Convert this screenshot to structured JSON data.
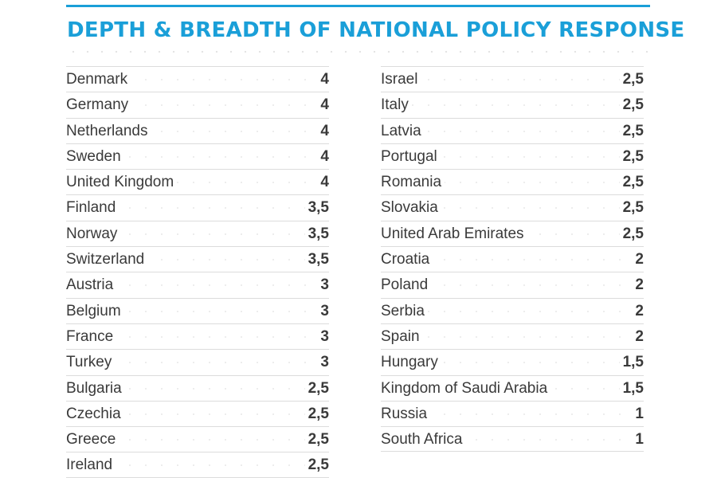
{
  "chart_data": {
    "type": "table",
    "title": "DEPTH & BREADTH OF NATIONAL POLICY RESPONSE",
    "columns": [
      [
        {
          "country": "Denmark",
          "score": "4"
        },
        {
          "country": "Germany",
          "score": "4"
        },
        {
          "country": "Netherlands",
          "score": "4"
        },
        {
          "country": "Sweden",
          "score": "4"
        },
        {
          "country": "United Kingdom",
          "score": "4"
        },
        {
          "country": "Finland",
          "score": "3,5"
        },
        {
          "country": "Norway",
          "score": "3,5"
        },
        {
          "country": "Switzerland",
          "score": "3,5"
        },
        {
          "country": "Austria",
          "score": "3"
        },
        {
          "country": "Belgium",
          "score": "3"
        },
        {
          "country": "France",
          "score": "3"
        },
        {
          "country": "Turkey",
          "score": "3"
        },
        {
          "country": "Bulgaria",
          "score": "2,5"
        },
        {
          "country": "Czechia",
          "score": "2,5"
        },
        {
          "country": "Greece",
          "score": "2,5"
        },
        {
          "country": "Ireland",
          "score": "2,5"
        }
      ],
      [
        {
          "country": "Israel",
          "score": "2,5"
        },
        {
          "country": "Italy",
          "score": "2,5"
        },
        {
          "country": "Latvia",
          "score": "2,5"
        },
        {
          "country": "Portugal",
          "score": "2,5"
        },
        {
          "country": "Romania",
          "score": "2,5"
        },
        {
          "country": "Slovakia",
          "score": "2,5"
        },
        {
          "country": "United Arab Emirates",
          "score": "2,5"
        },
        {
          "country": "Croatia",
          "score": "2"
        },
        {
          "country": "Poland",
          "score": "2"
        },
        {
          "country": "Serbia",
          "score": "2"
        },
        {
          "country": "Spain",
          "score": "2"
        },
        {
          "country": "Hungary",
          "score": "1,5"
        },
        {
          "country": "Kingdom of Saudi Arabia",
          "score": "1,5"
        },
        {
          "country": "Russia",
          "score": "1"
        },
        {
          "country": "South Africa",
          "score": "1"
        }
      ]
    ],
    "colors": {
      "accent": "#1a9fd8",
      "text": "#3a3a3a",
      "rule": "#dcdcdc"
    }
  }
}
